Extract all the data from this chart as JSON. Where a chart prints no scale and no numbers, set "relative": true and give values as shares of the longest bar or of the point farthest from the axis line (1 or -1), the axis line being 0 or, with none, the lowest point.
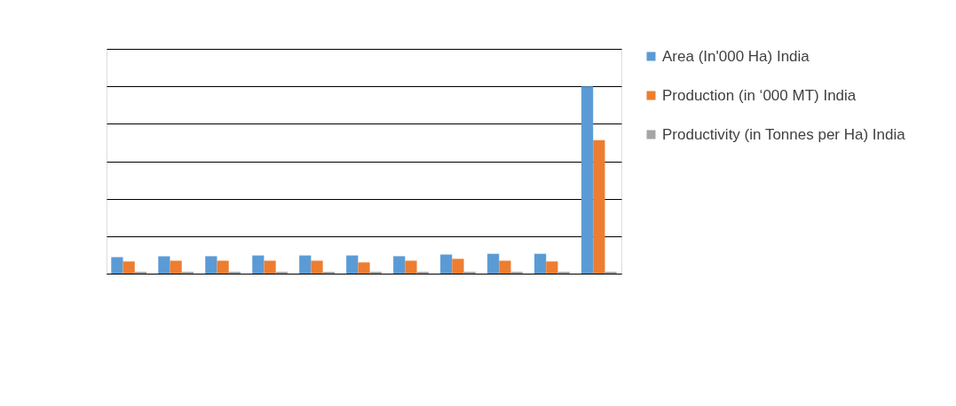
{
  "chart_data": {
    "type": "bar",
    "relative": true,
    "grid": "y",
    "legend": "right",
    "categories": [
      null,
      null,
      null,
      null,
      null,
      null,
      null,
      null,
      null,
      null,
      null
    ],
    "series": [
      {
        "name": "Area (In'000 Ha)  India",
        "color": "#5b9bd5",
        "values": [
          0.088,
          0.093,
          0.093,
          0.097,
          0.097,
          0.097,
          0.093,
          0.102,
          0.106,
          0.106,
          1
        ]
      },
      {
        "name": "Production (in ‘000 MT) India",
        "color": "#ed7d31",
        "values": [
          0.065,
          0.069,
          0.069,
          0.069,
          0.069,
          0.06,
          0.069,
          0.079,
          0.069,
          0.065,
          0.713
        ]
      },
      {
        "name": "Productivity (in Tonnes per Ha) India",
        "color": "#a5a5a5",
        "values": [
          0.01,
          0.01,
          0.01,
          0.01,
          0.01,
          0.01,
          0.01,
          0.01,
          0.01,
          0.01,
          0.01
        ]
      }
    ]
  }
}
